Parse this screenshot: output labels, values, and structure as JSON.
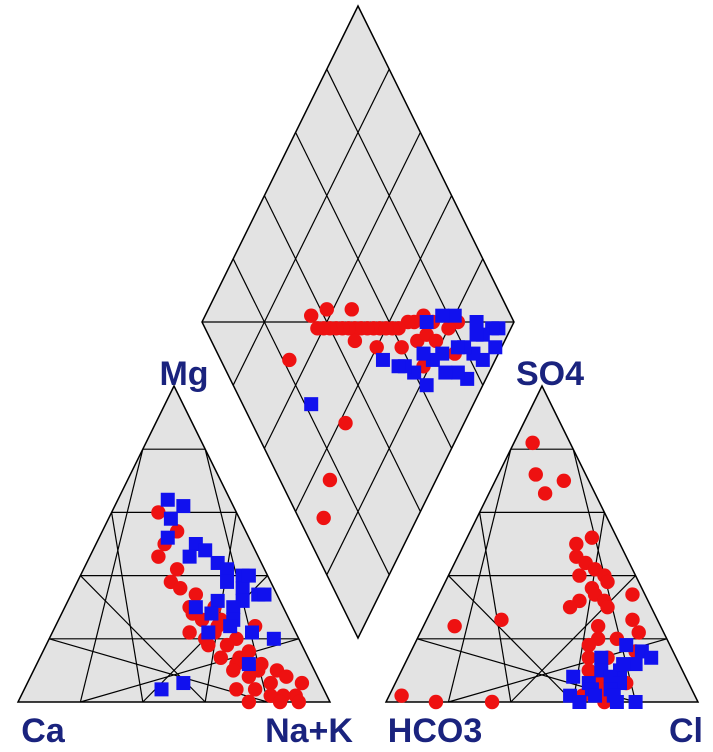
{
  "chart_data": {
    "type": "scatter",
    "subtype": "piper-diagram",
    "grid_divisions": 5,
    "labels": {
      "mg": "Mg",
      "so4": "SO4",
      "ca": "Ca",
      "nak": "Na+K",
      "hco3": "HCO3",
      "cl": "Cl"
    },
    "colors": {
      "panel_fill": "#e3e3e3",
      "grid": "#000000",
      "label": "#1a237e",
      "series_a": "#ee1111",
      "series_b": "#1111ee"
    },
    "series": [
      {
        "marker": "circle",
        "color": "#ee1111",
        "cation": [
          [
            60,
            25
          ],
          [
            54,
            22
          ],
          [
            50,
            28
          ],
          [
            46,
            32
          ],
          [
            42,
            28
          ],
          [
            38,
            32
          ],
          [
            36,
            30
          ],
          [
            34,
            26
          ],
          [
            30,
            30
          ],
          [
            30,
            22
          ],
          [
            28,
            30
          ],
          [
            26,
            28
          ],
          [
            26,
            22
          ],
          [
            24,
            24
          ],
          [
            22,
            26
          ],
          [
            20,
            20
          ],
          [
            18,
            30
          ],
          [
            18,
            24
          ],
          [
            14,
            22
          ],
          [
            14,
            28
          ],
          [
            12,
            24
          ],
          [
            12,
            16
          ],
          [
            10,
            18
          ],
          [
            10,
            12
          ],
          [
            8,
            22
          ],
          [
            8,
            10
          ],
          [
            6,
            16
          ],
          [
            4,
            22
          ],
          [
            2,
            10
          ],
          [
            2,
            14
          ],
          [
            2,
            18
          ],
          [
            0,
            10
          ],
          [
            0,
            16
          ],
          [
            0,
            26
          ],
          [
            24,
            12
          ],
          [
            16,
            18
          ],
          [
            10,
            26
          ],
          [
            4,
            28
          ],
          [
            6,
            6
          ],
          [
            20,
            30
          ],
          [
            22,
            34
          ]
        ],
        "anion": [
          [
            82,
            6
          ],
          [
            72,
            12
          ],
          [
            70,
            22
          ],
          [
            66,
            18
          ],
          [
            52,
            40
          ],
          [
            50,
            36
          ],
          [
            46,
            38
          ],
          [
            44,
            42
          ],
          [
            42,
            46
          ],
          [
            40,
            50
          ],
          [
            40,
            42
          ],
          [
            38,
            52
          ],
          [
            36,
            48
          ],
          [
            34,
            50
          ],
          [
            32,
            54
          ],
          [
            32,
            46
          ],
          [
            30,
            56
          ],
          [
            30,
            44
          ],
          [
            26,
            24
          ],
          [
            24,
            56
          ],
          [
            24,
            10
          ],
          [
            20,
            58
          ],
          [
            20,
            64
          ],
          [
            18,
            56
          ],
          [
            14,
            64
          ],
          [
            14,
            58
          ],
          [
            10,
            60
          ],
          [
            8,
            64
          ],
          [
            6,
            66
          ],
          [
            4,
            68
          ],
          [
            2,
            62
          ],
          [
            2,
            4
          ],
          [
            0,
            70
          ],
          [
            0,
            34
          ],
          [
            0,
            16
          ],
          [
            26,
            66
          ],
          [
            22,
            70
          ],
          [
            16,
            72
          ],
          [
            6,
            74
          ],
          [
            34,
            62
          ]
        ],
        "diamond": [
          [
            82,
            18
          ],
          [
            78,
            20
          ],
          [
            74,
            26
          ],
          [
            72,
            30
          ],
          [
            68,
            32
          ],
          [
            66,
            34
          ],
          [
            62,
            36
          ],
          [
            60,
            38
          ],
          [
            56,
            42
          ],
          [
            54,
            44
          ],
          [
            52,
            46
          ],
          [
            50,
            48
          ],
          [
            48,
            50
          ],
          [
            46,
            52
          ],
          [
            44,
            54
          ],
          [
            42,
            56
          ],
          [
            40,
            58
          ],
          [
            38,
            60
          ],
          [
            36,
            62
          ],
          [
            66,
            28
          ],
          [
            60,
            32
          ],
          [
            58,
            40
          ],
          [
            64,
            22
          ],
          [
            70,
            26
          ],
          [
            76,
            14
          ],
          [
            72,
            22
          ],
          [
            52,
            40
          ],
          [
            46,
            48
          ],
          [
            30,
            38
          ],
          [
            22,
            66
          ],
          [
            16,
            34
          ],
          [
            8,
            30
          ],
          [
            36,
            66
          ],
          [
            42,
            62
          ],
          [
            50,
            54
          ]
        ]
      },
      {
        "marker": "square",
        "color": "#1111ee",
        "cation": [
          [
            64,
            20
          ],
          [
            62,
            16
          ],
          [
            58,
            22
          ],
          [
            52,
            26
          ],
          [
            50,
            18
          ],
          [
            48,
            16
          ],
          [
            46,
            22
          ],
          [
            44,
            14
          ],
          [
            42,
            12
          ],
          [
            40,
            8
          ],
          [
            38,
            14
          ],
          [
            36,
            10
          ],
          [
            34,
            6
          ],
          [
            32,
            12
          ],
          [
            32,
            20
          ],
          [
            30,
            16
          ],
          [
            30,
            28
          ],
          [
            28,
            24
          ],
          [
            26,
            18
          ],
          [
            24,
            20
          ],
          [
            22,
            14
          ],
          [
            22,
            28
          ],
          [
            20,
            8
          ],
          [
            12,
            20
          ],
          [
            6,
            44
          ],
          [
            4,
            52
          ],
          [
            40,
            6
          ],
          [
            34,
            4
          ]
        ],
        "anion": [
          [
            18,
            68
          ],
          [
            14,
            62
          ],
          [
            12,
            74
          ],
          [
            10,
            64
          ],
          [
            10,
            70
          ],
          [
            8,
            56
          ],
          [
            8,
            68
          ],
          [
            6,
            62
          ],
          [
            6,
            72
          ],
          [
            4,
            64
          ],
          [
            4,
            70
          ],
          [
            2,
            66
          ],
          [
            2,
            72
          ],
          [
            0,
            74
          ],
          [
            0,
            80
          ],
          [
            16,
            74
          ],
          [
            12,
            70
          ],
          [
            14,
            78
          ],
          [
            2,
            58
          ],
          [
            0,
            62
          ]
        ],
        "diamond": [
          [
            94,
            4
          ],
          [
            92,
            6
          ],
          [
            90,
            2
          ],
          [
            88,
            8
          ],
          [
            86,
            10
          ],
          [
            84,
            4
          ],
          [
            82,
            8
          ],
          [
            80,
            12
          ],
          [
            78,
            14
          ],
          [
            76,
            6
          ],
          [
            74,
            10
          ],
          [
            72,
            18
          ],
          [
            70,
            14
          ],
          [
            68,
            20
          ],
          [
            66,
            24
          ],
          [
            62,
            18
          ],
          [
            60,
            24
          ],
          [
            58,
            28
          ],
          [
            56,
            30
          ],
          [
            52,
            36
          ],
          [
            88,
            12
          ],
          [
            82,
            20
          ],
          [
            78,
            24
          ],
          [
            72,
            28
          ],
          [
            22,
            52
          ]
        ]
      }
    ]
  }
}
